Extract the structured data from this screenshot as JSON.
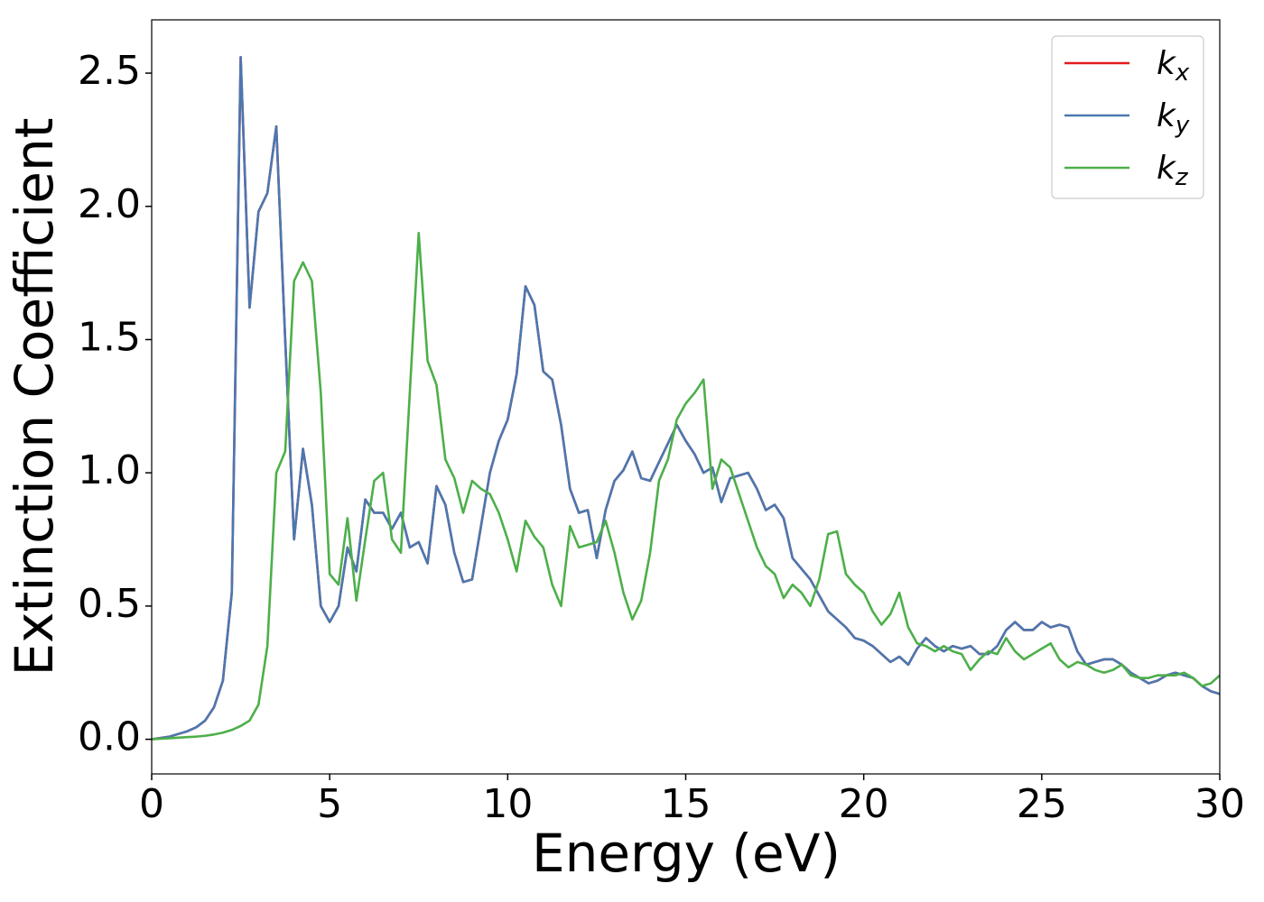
{
  "chart_data": {
    "type": "line",
    "x_label": "Energy (eV)",
    "y_label": "Extinction Coefficient",
    "xlim": [
      0,
      30
    ],
    "ylim": [
      -0.13,
      2.7
    ],
    "xticks": [
      0,
      5,
      10,
      15,
      20,
      25,
      30
    ],
    "yticks": [
      {
        "value": 0,
        "label": "0.0"
      },
      0.5,
      {
        "value": 1,
        "label": "1.0"
      },
      1.5,
      {
        "value": 2,
        "label": "2.0"
      },
      2.5
    ],
    "grid": false,
    "legend": "upper right",
    "x": [
      0,
      0.25,
      0.5,
      0.75,
      1,
      1.25,
      1.5,
      1.75,
      2,
      2.25,
      2.5,
      2.75,
      3,
      3.25,
      3.5,
      3.75,
      4,
      4.25,
      4.5,
      4.75,
      5,
      5.25,
      5.5,
      5.75,
      6,
      6.25,
      6.5,
      6.75,
      7,
      7.25,
      7.5,
      7.75,
      8,
      8.25,
      8.5,
      8.75,
      9,
      9.25,
      9.5,
      9.75,
      10,
      10.25,
      10.5,
      10.75,
      11,
      11.25,
      11.5,
      11.75,
      12,
      12.25,
      12.5,
      12.75,
      13,
      13.25,
      13.5,
      13.75,
      14,
      14.25,
      14.5,
      14.75,
      15,
      15.25,
      15.5,
      15.75,
      16,
      16.25,
      16.5,
      16.75,
      17,
      17.25,
      17.5,
      17.75,
      18,
      18.25,
      18.5,
      18.75,
      19,
      19.25,
      19.5,
      19.75,
      20,
      20.25,
      20.5,
      20.75,
      21,
      21.25,
      21.5,
      21.75,
      22,
      22.25,
      22.5,
      22.75,
      23,
      23.25,
      23.5,
      23.75,
      24,
      24.25,
      24.5,
      24.75,
      25,
      25.25,
      25.5,
      25.75,
      26,
      26.25,
      26.5,
      26.75,
      27,
      27.25,
      27.5,
      27.75,
      28,
      28.25,
      28.5,
      28.75,
      29,
      29.25,
      29.5,
      29.75,
      30
    ],
    "series": [
      {
        "name": "kx",
        "color": "#e41a1c",
        "values": [
          0,
          0.005,
          0.01,
          0.02,
          0.03,
          0.045,
          0.07,
          0.12,
          0.22,
          0.55,
          2.56,
          1.62,
          1.98,
          2.05,
          2.3,
          1.5,
          0.75,
          1.09,
          0.88,
          0.5,
          0.44,
          0.5,
          0.72,
          0.63,
          0.9,
          0.85,
          0.85,
          0.79,
          0.85,
          0.72,
          0.74,
          0.66,
          0.95,
          0.88,
          0.7,
          0.59,
          0.6,
          0.8,
          1.0,
          1.12,
          1.2,
          1.37,
          1.7,
          1.63,
          1.38,
          1.35,
          1.18,
          0.94,
          0.85,
          0.86,
          0.68,
          0.86,
          0.97,
          1.01,
          1.08,
          0.98,
          0.97,
          1.04,
          1.11,
          1.18,
          1.12,
          1.07,
          1.0,
          1.02,
          0.89,
          0.98,
          0.99,
          1.0,
          0.94,
          0.86,
          0.88,
          0.83,
          0.68,
          0.64,
          0.6,
          0.54,
          0.48,
          0.45,
          0.42,
          0.38,
          0.37,
          0.35,
          0.32,
          0.29,
          0.31,
          0.28,
          0.34,
          0.38,
          0.35,
          0.33,
          0.35,
          0.34,
          0.35,
          0.32,
          0.32,
          0.35,
          0.41,
          0.44,
          0.41,
          0.41,
          0.44,
          0.42,
          0.43,
          0.42,
          0.33,
          0.28,
          0.29,
          0.3,
          0.3,
          0.28,
          0.25,
          0.23,
          0.21,
          0.22,
          0.24,
          0.25,
          0.24,
          0.23,
          0.2,
          0.18,
          0.17
        ]
      },
      {
        "name": "ky",
        "color": "#4a78b0",
        "values": [
          0,
          0.005,
          0.01,
          0.02,
          0.03,
          0.045,
          0.07,
          0.12,
          0.22,
          0.55,
          2.56,
          1.62,
          1.98,
          2.05,
          2.3,
          1.5,
          0.75,
          1.09,
          0.88,
          0.5,
          0.44,
          0.5,
          0.72,
          0.63,
          0.9,
          0.85,
          0.85,
          0.79,
          0.85,
          0.72,
          0.74,
          0.66,
          0.95,
          0.88,
          0.7,
          0.59,
          0.6,
          0.8,
          1.0,
          1.12,
          1.2,
          1.37,
          1.7,
          1.63,
          1.38,
          1.35,
          1.18,
          0.94,
          0.85,
          0.86,
          0.68,
          0.86,
          0.97,
          1.01,
          1.08,
          0.98,
          0.97,
          1.04,
          1.11,
          1.18,
          1.12,
          1.07,
          1.0,
          1.02,
          0.89,
          0.98,
          0.99,
          1.0,
          0.94,
          0.86,
          0.88,
          0.83,
          0.68,
          0.64,
          0.6,
          0.54,
          0.48,
          0.45,
          0.42,
          0.38,
          0.37,
          0.35,
          0.32,
          0.29,
          0.31,
          0.28,
          0.34,
          0.38,
          0.35,
          0.33,
          0.35,
          0.34,
          0.35,
          0.32,
          0.32,
          0.35,
          0.41,
          0.44,
          0.41,
          0.41,
          0.44,
          0.42,
          0.43,
          0.42,
          0.33,
          0.28,
          0.29,
          0.3,
          0.3,
          0.28,
          0.25,
          0.23,
          0.21,
          0.22,
          0.24,
          0.25,
          0.24,
          0.23,
          0.2,
          0.18,
          0.17
        ]
      },
      {
        "name": "kz",
        "color": "#4daf4a",
        "values": [
          0,
          0.002,
          0.004,
          0.006,
          0.008,
          0.01,
          0.013,
          0.018,
          0.025,
          0.035,
          0.05,
          0.07,
          0.13,
          0.35,
          1.0,
          1.08,
          1.72,
          1.79,
          1.72,
          1.3,
          0.62,
          0.58,
          0.83,
          0.52,
          0.75,
          0.97,
          1.0,
          0.75,
          0.7,
          1.3,
          1.9,
          1.42,
          1.33,
          1.05,
          0.98,
          0.85,
          0.97,
          0.94,
          0.92,
          0.85,
          0.75,
          0.63,
          0.82,
          0.76,
          0.72,
          0.58,
          0.5,
          0.8,
          0.72,
          0.73,
          0.74,
          0.82,
          0.7,
          0.55,
          0.45,
          0.52,
          0.7,
          0.97,
          1.05,
          1.2,
          1.26,
          1.3,
          1.35,
          0.94,
          1.05,
          1.02,
          0.92,
          0.82,
          0.72,
          0.65,
          0.62,
          0.53,
          0.58,
          0.55,
          0.5,
          0.6,
          0.77,
          0.78,
          0.62,
          0.58,
          0.55,
          0.48,
          0.43,
          0.47,
          0.55,
          0.42,
          0.36,
          0.35,
          0.33,
          0.35,
          0.33,
          0.32,
          0.26,
          0.3,
          0.33,
          0.32,
          0.38,
          0.33,
          0.3,
          0.32,
          0.34,
          0.36,
          0.3,
          0.27,
          0.29,
          0.28,
          0.26,
          0.25,
          0.26,
          0.28,
          0.24,
          0.23,
          0.23,
          0.24,
          0.24,
          0.24,
          0.25,
          0.23,
          0.2,
          0.21,
          0.24
        ]
      }
    ]
  }
}
